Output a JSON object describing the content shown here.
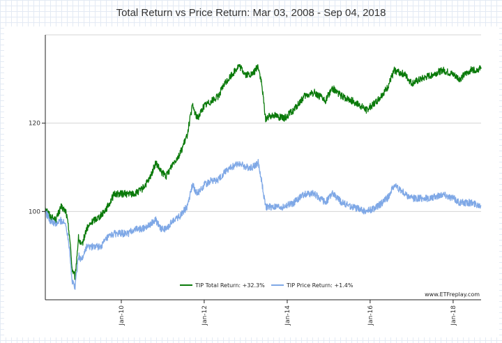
{
  "chart_data": {
    "type": "line",
    "title": "Total Return vs Price Return: Mar 03, 2008 - Sep 04, 2018",
    "xlabel": "",
    "ylabel": "",
    "x_range": [
      "2008-03-03",
      "2018-09-04"
    ],
    "ylim": [
      80,
      140
    ],
    "y_ticks": [
      100,
      120
    ],
    "x_ticks": [
      {
        "label": "Jan-10",
        "date": "2010-01-01"
      },
      {
        "label": "Jan-12",
        "date": "2012-01-01"
      },
      {
        "label": "Jan-14",
        "date": "2014-01-01"
      },
      {
        "label": "Jan-16",
        "date": "2016-01-01"
      },
      {
        "label": "Jan-18",
        "date": "2018-01-01"
      }
    ],
    "grid": "horizontal",
    "legend_position": "bottom-center",
    "watermark": "www.ETFreplay.com",
    "series": [
      {
        "name": "TIP Total Return: +32.3%",
        "color": "#0a7a0a",
        "points": [
          [
            "2008-03-03",
            101
          ],
          [
            "2008-04-15",
            99
          ],
          [
            "2008-06-01",
            98
          ],
          [
            "2008-07-20",
            101
          ],
          [
            "2008-09-01",
            100
          ],
          [
            "2008-10-01",
            95
          ],
          [
            "2008-10-25",
            87
          ],
          [
            "2008-11-20",
            85
          ],
          [
            "2008-12-20",
            94
          ],
          [
            "2009-01-15",
            92
          ],
          [
            "2009-03-01",
            96
          ],
          [
            "2009-05-01",
            98
          ],
          [
            "2009-07-01",
            99
          ],
          [
            "2009-09-01",
            101
          ],
          [
            "2009-11-01",
            104
          ],
          [
            "2010-01-01",
            104
          ],
          [
            "2010-03-01",
            104
          ],
          [
            "2010-05-01",
            104
          ],
          [
            "2010-07-01",
            105
          ],
          [
            "2010-09-01",
            107
          ],
          [
            "2010-11-01",
            111
          ],
          [
            "2010-12-15",
            109
          ],
          [
            "2011-02-01",
            108
          ],
          [
            "2011-04-01",
            111
          ],
          [
            "2011-06-01",
            113
          ],
          [
            "2011-08-01",
            117
          ],
          [
            "2011-09-20",
            124
          ],
          [
            "2011-11-01",
            121
          ],
          [
            "2012-01-01",
            124
          ],
          [
            "2012-03-01",
            125
          ],
          [
            "2012-05-01",
            126
          ],
          [
            "2012-07-01",
            129
          ],
          [
            "2012-09-01",
            131
          ],
          [
            "2012-11-01",
            133
          ],
          [
            "2013-01-01",
            131
          ],
          [
            "2013-03-01",
            131
          ],
          [
            "2013-04-20",
            133
          ],
          [
            "2013-05-20",
            129
          ],
          [
            "2013-06-25",
            121
          ],
          [
            "2013-09-01",
            122
          ],
          [
            "2013-12-01",
            121
          ],
          [
            "2014-03-01",
            123
          ],
          [
            "2014-06-01",
            126
          ],
          [
            "2014-09-01",
            127
          ],
          [
            "2014-12-01",
            125
          ],
          [
            "2015-02-01",
            128
          ],
          [
            "2015-05-01",
            126
          ],
          [
            "2015-08-01",
            125
          ],
          [
            "2015-12-01",
            123
          ],
          [
            "2016-03-01",
            125
          ],
          [
            "2016-06-01",
            128
          ],
          [
            "2016-08-01",
            132
          ],
          [
            "2016-11-01",
            131
          ],
          [
            "2017-01-01",
            129
          ],
          [
            "2017-04-01",
            130
          ],
          [
            "2017-07-01",
            131
          ],
          [
            "2017-10-01",
            132
          ],
          [
            "2018-01-01",
            131
          ],
          [
            "2018-03-01",
            130
          ],
          [
            "2018-06-01",
            132
          ],
          [
            "2018-09-04",
            132.3
          ]
        ]
      },
      {
        "name": "TIP Price Return: +1.4%",
        "color": "#7fa8e6",
        "points": [
          [
            "2008-03-03",
            100
          ],
          [
            "2008-04-15",
            98
          ],
          [
            "2008-06-01",
            97
          ],
          [
            "2008-07-20",
            98
          ],
          [
            "2008-09-01",
            97
          ],
          [
            "2008-10-01",
            92
          ],
          [
            "2008-10-25",
            84
          ],
          [
            "2008-11-20",
            83
          ],
          [
            "2008-12-20",
            90
          ],
          [
            "2009-01-15",
            89
          ],
          [
            "2009-03-01",
            92
          ],
          [
            "2009-05-01",
            92
          ],
          [
            "2009-07-01",
            92
          ],
          [
            "2009-09-01",
            94
          ],
          [
            "2009-11-01",
            95
          ],
          [
            "2010-01-01",
            95
          ],
          [
            "2010-03-01",
            95
          ],
          [
            "2010-05-01",
            96
          ],
          [
            "2010-07-01",
            96
          ],
          [
            "2010-09-01",
            97
          ],
          [
            "2010-11-01",
            98
          ],
          [
            "2010-12-15",
            96
          ],
          [
            "2011-02-01",
            96
          ],
          [
            "2011-04-01",
            98
          ],
          [
            "2011-06-01",
            99
          ],
          [
            "2011-08-01",
            101
          ],
          [
            "2011-09-20",
            106
          ],
          [
            "2011-11-01",
            104
          ],
          [
            "2012-01-01",
            106
          ],
          [
            "2012-03-01",
            107
          ],
          [
            "2012-05-01",
            107
          ],
          [
            "2012-07-01",
            109
          ],
          [
            "2012-09-01",
            110
          ],
          [
            "2012-11-01",
            111
          ],
          [
            "2013-01-01",
            110
          ],
          [
            "2013-03-01",
            110
          ],
          [
            "2013-04-20",
            111
          ],
          [
            "2013-05-20",
            107
          ],
          [
            "2013-06-25",
            101
          ],
          [
            "2013-09-01",
            101
          ],
          [
            "2013-12-01",
            101
          ],
          [
            "2014-03-01",
            102
          ],
          [
            "2014-06-01",
            104
          ],
          [
            "2014-09-01",
            104
          ],
          [
            "2014-12-01",
            102
          ],
          [
            "2015-02-01",
            104
          ],
          [
            "2015-05-01",
            102
          ],
          [
            "2015-08-01",
            101
          ],
          [
            "2015-12-01",
            100
          ],
          [
            "2016-03-01",
            101
          ],
          [
            "2016-06-01",
            103
          ],
          [
            "2016-08-01",
            106
          ],
          [
            "2016-11-01",
            104
          ],
          [
            "2017-01-01",
            103
          ],
          [
            "2017-04-01",
            103
          ],
          [
            "2017-07-01",
            103
          ],
          [
            "2017-10-01",
            104
          ],
          [
            "2018-01-01",
            103
          ],
          [
            "2018-03-01",
            102
          ],
          [
            "2018-06-01",
            102
          ],
          [
            "2018-09-04",
            101.4
          ]
        ]
      }
    ]
  }
}
